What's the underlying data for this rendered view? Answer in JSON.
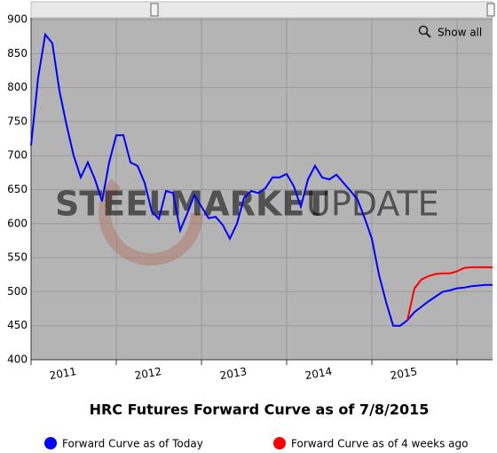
{
  "chart_data": {
    "type": "line",
    "title": "HRC Futures Forward Curve as of 7/8/2015",
    "zoom_button": "Show all",
    "watermark": {
      "bold": "STEELMARKET",
      "light": "UPDATE"
    },
    "categories": [
      null,
      null,
      null,
      null,
      null,
      "2011",
      null,
      null,
      null,
      null,
      null,
      null,
      null,
      null,
      null,
      null,
      null,
      "2012",
      null,
      null,
      null,
      null,
      null,
      null,
      null,
      null,
      null,
      null,
      null,
      "2013",
      null,
      null,
      null,
      null,
      null,
      null,
      null,
      null,
      null,
      null,
      null,
      "2014",
      null,
      null,
      null,
      null,
      null,
      null,
      null,
      null,
      null,
      null,
      null,
      "2015",
      null,
      null,
      null,
      null,
      null,
      null,
      null,
      null,
      null,
      null,
      null,
      null
    ],
    "series": [
      {
        "name": "Forward Curve as of Today",
        "color": "#0000ff",
        "values": [
          715,
          815,
          878,
          865,
          795,
          745,
          700,
          668,
          690,
          665,
          633,
          690,
          730,
          730,
          690,
          685,
          660,
          618,
          607,
          648,
          645,
          590,
          615,
          642,
          625,
          608,
          610,
          598,
          578,
          600,
          638,
          648,
          645,
          652,
          668,
          668,
          673,
          655,
          625,
          665,
          685,
          668,
          665,
          672,
          660,
          648,
          635,
          608,
          578,
          525,
          485,
          450,
          450,
          458,
          470,
          478,
          486,
          493,
          500,
          502,
          505,
          506,
          508,
          509,
          510,
          510
        ]
      },
      {
        "name": "Forward Curve as of 4 weeks ago",
        "color": "#ff0000",
        "values": [
          null,
          null,
          null,
          null,
          null,
          null,
          null,
          null,
          null,
          null,
          null,
          null,
          null,
          null,
          null,
          null,
          null,
          null,
          null,
          null,
          null,
          null,
          null,
          null,
          null,
          null,
          null,
          null,
          null,
          null,
          null,
          null,
          null,
          null,
          null,
          null,
          null,
          null,
          null,
          null,
          null,
          null,
          null,
          null,
          null,
          null,
          null,
          null,
          null,
          null,
          null,
          null,
          null,
          458,
          505,
          518,
          523,
          526,
          527,
          527,
          530,
          535,
          536,
          536,
          536,
          536
        ]
      }
    ],
    "ylim": [
      400,
      900
    ],
    "yticks": [
      400,
      450,
      500,
      550,
      600,
      650,
      700,
      750,
      800,
      850,
      900
    ],
    "grid": true,
    "legend": "bottom",
    "background": "#b4b4b4"
  }
}
